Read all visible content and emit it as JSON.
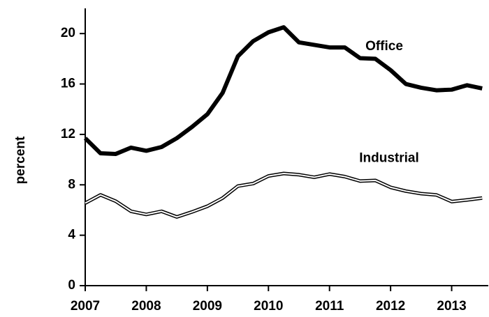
{
  "chart_data": {
    "type": "line",
    "y_label": "percent",
    "x": [
      2007,
      2007.25,
      2007.5,
      2007.75,
      2008,
      2008.25,
      2008.5,
      2008.75,
      2009,
      2009.25,
      2009.5,
      2009.75,
      2010,
      2010.25,
      2010.5,
      2010.75,
      2011,
      2011.25,
      2011.5,
      2011.75,
      2012,
      2012.25,
      2012.5,
      2012.75,
      2013,
      2013.25,
      2013.5
    ],
    "series": [
      {
        "name": "Office",
        "color": "#000000",
        "style": "solid",
        "values": [
          11.7,
          10.5,
          10.45,
          10.95,
          10.7,
          11.0,
          11.7,
          12.6,
          13.6,
          15.3,
          18.2,
          19.4,
          20.1,
          20.5,
          19.3,
          19.1,
          18.9,
          18.9,
          18.05,
          18.0,
          17.1,
          16.0,
          15.7,
          15.5,
          15.55,
          15.9,
          15.65
        ]
      },
      {
        "name": "Industrial",
        "color": "#000000",
        "style": "double",
        "values": [
          6.55,
          7.2,
          6.7,
          5.9,
          5.65,
          5.9,
          5.45,
          5.85,
          6.3,
          6.95,
          7.9,
          8.1,
          8.7,
          8.9,
          8.8,
          8.6,
          8.85,
          8.65,
          8.3,
          8.35,
          7.8,
          7.5,
          7.3,
          7.2,
          6.67,
          6.8,
          6.95
        ]
      }
    ],
    "xlim": [
      2007,
      2013.6
    ],
    "xticks": [
      2007,
      2008,
      2009,
      2010,
      2011,
      2012,
      2013
    ],
    "ylim": [
      0,
      22
    ],
    "yticks": [
      0,
      4,
      8,
      12,
      16,
      20
    ],
    "grid": false
  }
}
